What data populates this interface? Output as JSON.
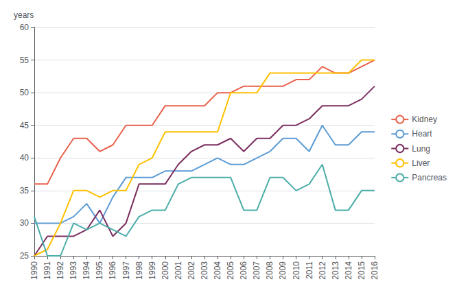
{
  "chart_data": {
    "type": "line",
    "ylabel": "years",
    "x": [
      1990,
      1991,
      1992,
      1993,
      1994,
      1995,
      1996,
      1997,
      1998,
      1999,
      2000,
      2001,
      2002,
      2003,
      2004,
      2005,
      2006,
      2007,
      2008,
      2009,
      2010,
      2011,
      2012,
      2013,
      2014,
      2015,
      2016
    ],
    "series": [
      {
        "name": "Kidney",
        "color": "#E8604C",
        "values": [
          36,
          36,
          40,
          43,
          43,
          41,
          42,
          45,
          45,
          45,
          48,
          48,
          48,
          48,
          50,
          50,
          51,
          51,
          51,
          51,
          52,
          52,
          54,
          53,
          53,
          54,
          55
        ]
      },
      {
        "name": "Heart",
        "color": "#5B9BD5",
        "values": [
          30,
          30,
          30,
          31,
          33,
          30,
          34,
          37,
          37,
          37,
          38,
          38,
          38,
          39,
          40,
          39,
          39,
          40,
          41,
          43,
          43,
          41,
          45,
          42,
          42,
          44,
          44
        ]
      },
      {
        "name": "Lung",
        "color": "#7B2D5E",
        "values": [
          25,
          28,
          28,
          28,
          29,
          32,
          28,
          30,
          36,
          36,
          36,
          39,
          41,
          42,
          42,
          43,
          41,
          43,
          43,
          45,
          45,
          46,
          48,
          48,
          48,
          49,
          51
        ]
      },
      {
        "name": "Liver",
        "color": "#FFC000",
        "values": [
          25,
          26,
          30,
          35,
          35,
          34,
          35,
          35,
          39,
          40,
          44,
          44,
          44,
          44,
          44,
          50,
          50,
          50,
          53,
          53,
          53,
          53,
          53,
          53,
          53,
          55,
          55
        ]
      },
      {
        "name": "Pancreas",
        "color": "#4AADA8",
        "values": [
          31,
          25,
          25,
          30,
          29,
          30,
          29,
          28,
          31,
          32,
          32,
          36,
          37,
          37,
          37,
          37,
          32,
          32,
          37,
          37,
          35,
          36,
          39,
          32,
          32,
          35,
          35
        ]
      }
    ],
    "xlim": [
      1990,
      2016
    ],
    "xticks": [
      1990,
      1991,
      1992,
      1993,
      1994,
      1995,
      1996,
      1997,
      1998,
      1999,
      2000,
      2001,
      2002,
      2003,
      2004,
      2005,
      2006,
      2007,
      2008,
      2009,
      2010,
      2011,
      2012,
      2013,
      2014,
      2015,
      2016
    ],
    "ylim": [
      25,
      60
    ],
    "yticks": [
      25,
      30,
      35,
      40,
      45,
      50,
      55,
      60
    ],
    "grid": true,
    "legend": "right"
  }
}
